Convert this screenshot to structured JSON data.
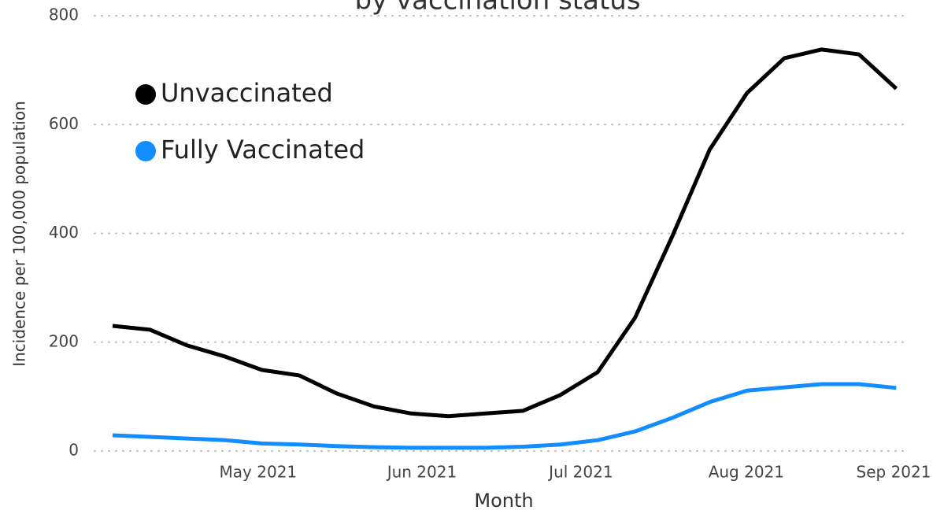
{
  "chart_data": {
    "type": "line",
    "title": "by vaccination status",
    "x_label": "Month",
    "y_label": "Incidence per 100,000 population",
    "categories": [
      null,
      null,
      null,
      null,
      null,
      null,
      null,
      null,
      null,
      null,
      null,
      null,
      null,
      null,
      null,
      null,
      null,
      null,
      null,
      null,
      null,
      null
    ],
    "xticks": [
      {
        "value": 3.9,
        "label": "May 2021"
      },
      {
        "value": 8.29,
        "label": "Jun 2021"
      },
      {
        "value": 12.55,
        "label": "Jul 2021"
      },
      {
        "value": 16.98,
        "label": "Aug 2021"
      },
      {
        "value": 20.97,
        "label": "Sep 2021"
      }
    ],
    "series": [
      {
        "name": "Unvaccinated",
        "color": "#000000",
        "values": [
          230,
          223,
          194,
          174,
          149,
          139,
          106,
          82,
          69,
          64,
          69,
          74,
          103,
          145,
          245,
          395,
          554,
          658,
          722,
          738,
          729,
          666
        ]
      },
      {
        "name": "Fully Vaccinated",
        "color": "#118dff",
        "values": [
          29,
          26,
          23,
          20,
          14,
          12,
          9,
          7,
          6,
          6,
          6,
          8,
          12,
          20,
          36,
          61,
          90,
          111,
          117,
          123,
          123,
          116
        ]
      }
    ],
    "ylim": [
      0,
      800
    ],
    "yticks": [
      0,
      200,
      400,
      600,
      800
    ],
    "grid": true,
    "legend": "upper left"
  }
}
